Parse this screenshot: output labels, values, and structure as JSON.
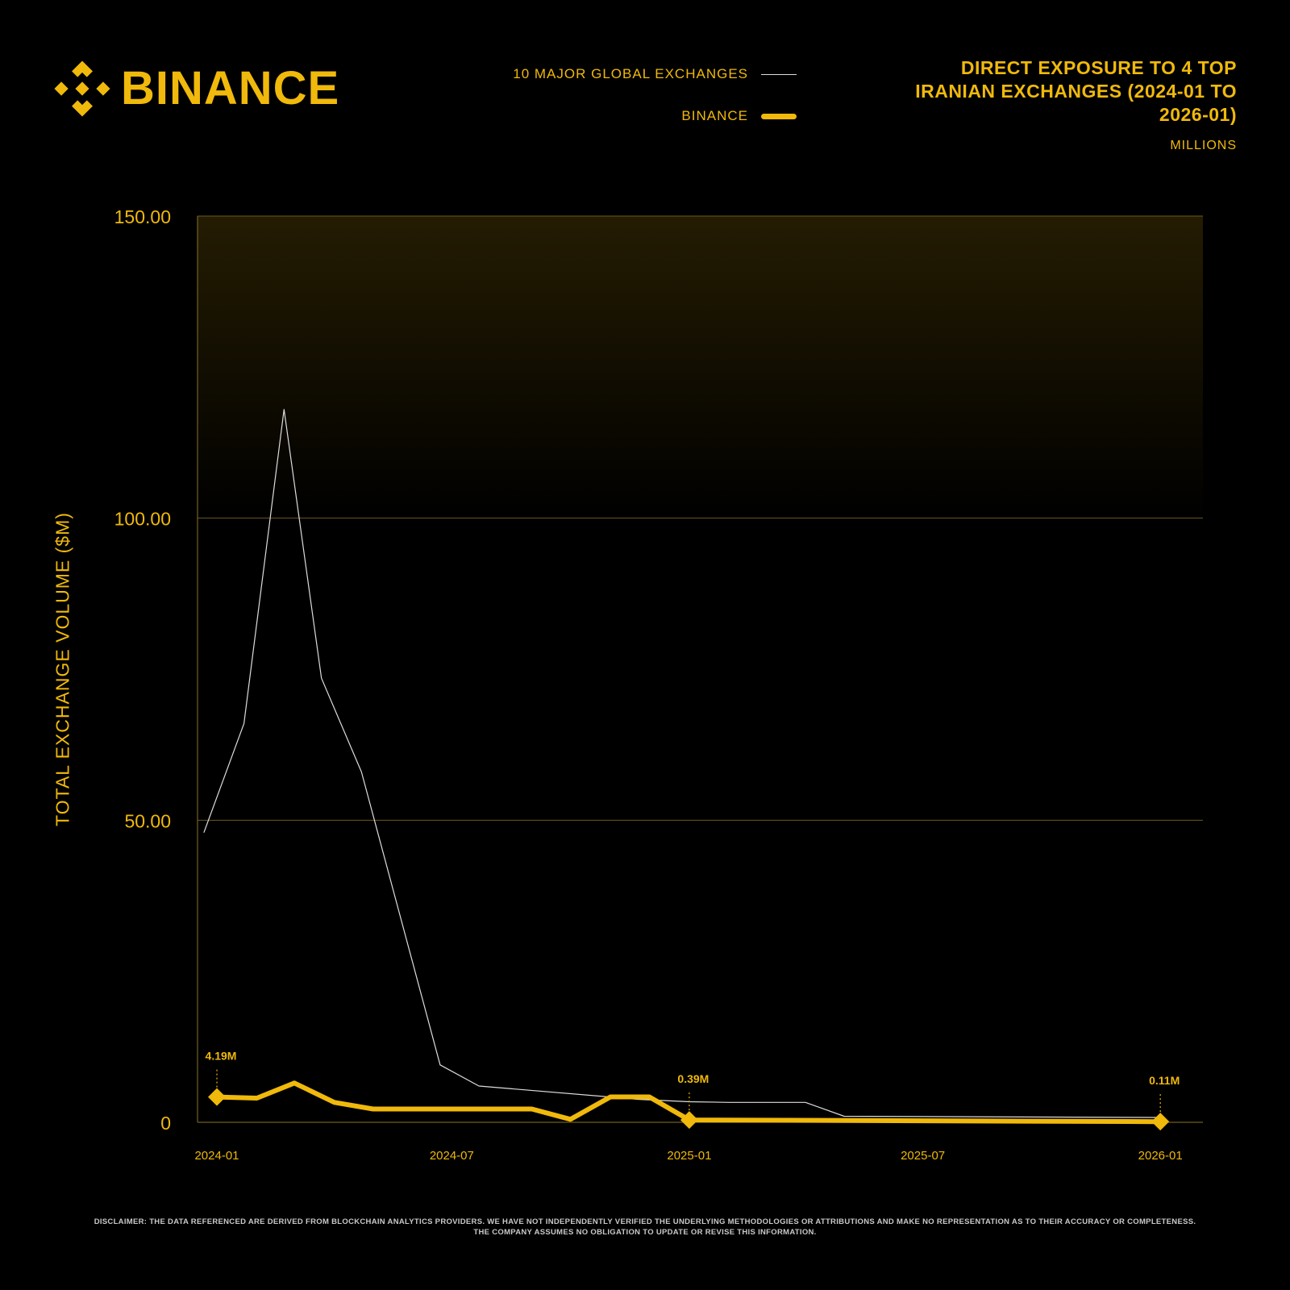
{
  "brand": {
    "name": "BINANCE"
  },
  "legend": [
    {
      "label": "10 MAJOR GLOBAL EXCHANGES"
    },
    {
      "label": "BINANCE"
    }
  ],
  "title": "DIRECT EXPOSURE TO 4 TOP IRANIAN EXCHANGES (2024-01 TO 2026-01)",
  "subtitle": "MILLIONS",
  "disclaimer": {
    "line1": "DISCLAIMER: THE DATA REFERENCED ARE DERIVED FROM BLOCKCHAIN ANALYTICS PROVIDERS. WE HAVE NOT INDEPENDENTLY VERIFIED THE UNDERLYING METHODOLOGIES OR ATTRIBUTIONS AND MAKE NO REPRESENTATION AS TO THEIR ACCURACY OR COMPLETENESS.",
    "line2": "THE COMPANY ASSUMES NO OBLIGATION TO UPDATE OR REVISE THIS INFORMATION."
  },
  "colors": {
    "accent": "#F0B90B",
    "background": "#000000",
    "global_line": "#dddddd"
  },
  "chart_data": {
    "type": "line",
    "title": "DIRECT EXPOSURE TO 4 TOP IRANIAN EXCHANGES (2024-01 TO 2026-01)",
    "subtitle": "MILLIONS",
    "xlabel": "",
    "ylabel": "TOTAL EXCHANGE VOLUME ($M)",
    "xlim": [
      "2023-12-17",
      "2026-02-03"
    ],
    "ylim": [
      0,
      150
    ],
    "y_ticks": [
      0,
      50,
      100,
      150
    ],
    "y_tick_labels": [
      "0",
      "50.00",
      "100.00",
      "150.00"
    ],
    "x_ticks": [
      "2024-01-01",
      "2024-07-01",
      "2025-01-01",
      "2025-07-01",
      "2026-01-01"
    ],
    "x_tick_labels": [
      "2024-01",
      "2024-07",
      "2025-01",
      "2025-07",
      "2026-01"
    ],
    "grid": "horizontal",
    "legend_position": "top-center",
    "series": [
      {
        "name": "10 MAJOR GLOBAL EXCHANGES",
        "color": "#dddddd",
        "points": [
          [
            "2023-12-22",
            48
          ],
          [
            "2024-01-22",
            66
          ],
          [
            "2024-02-22",
            118
          ],
          [
            "2024-03-22",
            73.5
          ],
          [
            "2024-04-22",
            58
          ],
          [
            "2024-06-22",
            9.5
          ],
          [
            "2024-07-22",
            6
          ],
          [
            "2024-11-22",
            3.8
          ],
          [
            "2025-01-01",
            3.4
          ],
          [
            "2025-02-01",
            3.3
          ],
          [
            "2025-04-01",
            3.3
          ],
          [
            "2025-05-01",
            1
          ],
          [
            "2026-01-01",
            0.8
          ]
        ]
      },
      {
        "name": "BINANCE",
        "color": "#F0B90B",
        "points": [
          [
            "2024-01-01",
            4.19
          ],
          [
            "2024-02-01",
            4
          ],
          [
            "2024-03-01",
            6.5
          ],
          [
            "2024-04-01",
            3.3
          ],
          [
            "2024-05-01",
            2.2
          ],
          [
            "2024-09-01",
            2.2
          ],
          [
            "2024-10-01",
            0.5
          ],
          [
            "2024-11-01",
            4.2
          ],
          [
            "2024-12-01",
            4.2
          ],
          [
            "2025-01-01",
            0.39
          ],
          [
            "2026-01-01",
            0.11
          ]
        ]
      }
    ],
    "annotations": [
      {
        "series": "BINANCE",
        "x": "2024-01-01",
        "y": 4.19,
        "label": "4.19M"
      },
      {
        "series": "BINANCE",
        "x": "2025-01-01",
        "y": 0.39,
        "label": "0.39M"
      },
      {
        "series": "BINANCE",
        "x": "2026-01-01",
        "y": 0.11,
        "label": "0.11M"
      }
    ]
  }
}
